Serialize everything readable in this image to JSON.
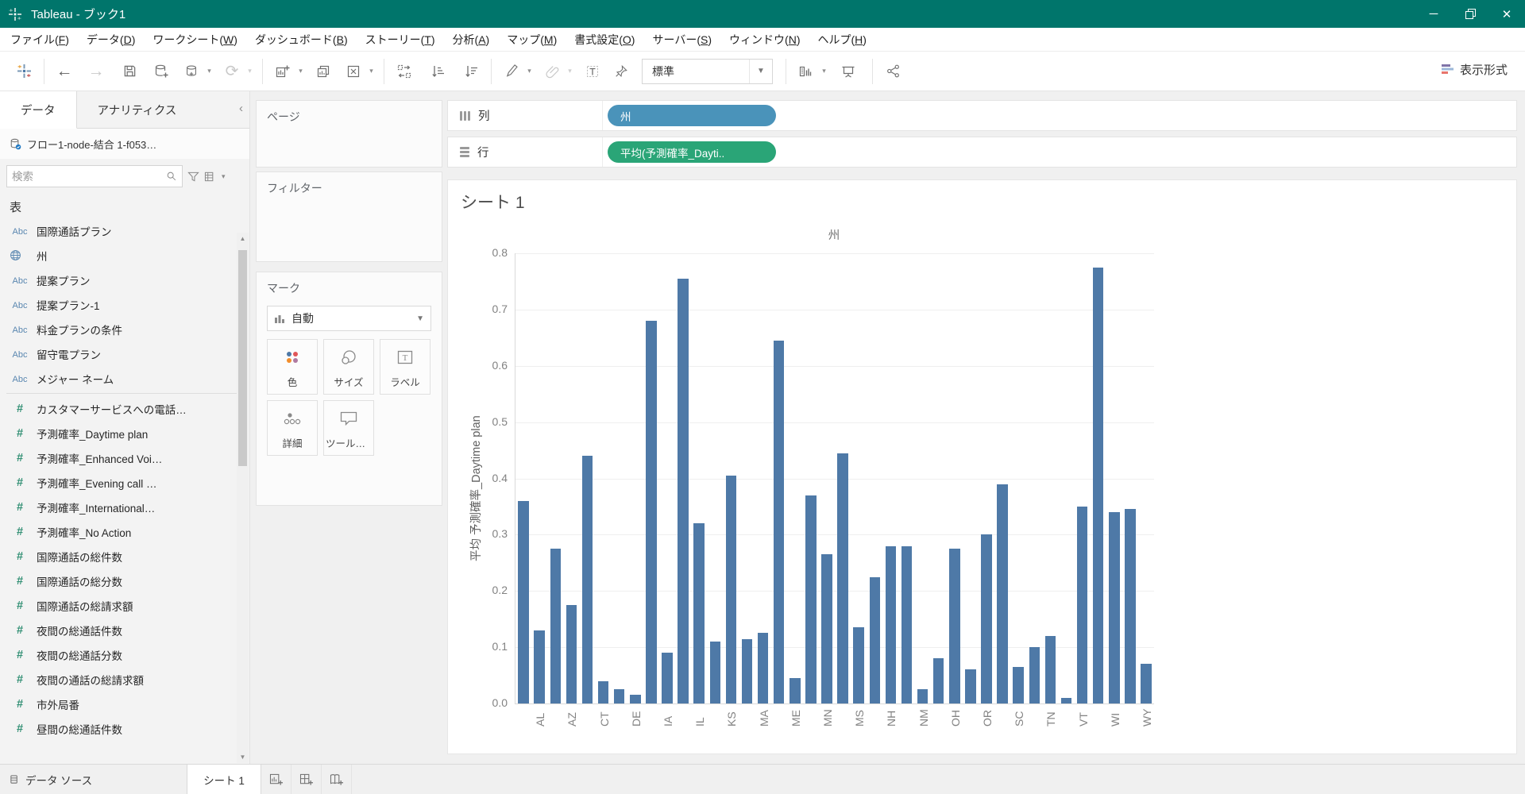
{
  "window": {
    "title": "Tableau - ブック1"
  },
  "menu": {
    "items": [
      "ファイル(F)",
      "データ(D)",
      "ワークシート(W)",
      "ダッシュボード(B)",
      "ストーリー(T)",
      "分析(A)",
      "マップ(M)",
      "書式設定(O)",
      "サーバー(S)",
      "ウィンドウ(N)",
      "ヘルプ(H)"
    ]
  },
  "toolbar": {
    "fit_label": "標準",
    "show_me_label": "表示形式"
  },
  "sidebar": {
    "tabs": [
      {
        "label": "データ",
        "active": true
      },
      {
        "label": "アナリティクス",
        "active": false
      }
    ],
    "datasource": "フロー1-node-結合 1-f053…",
    "search_placeholder": "検索",
    "tables_label": "表",
    "fields": [
      {
        "icon": "Abc",
        "label": "国際通話プラン"
      },
      {
        "icon": "globe",
        "label": "州"
      },
      {
        "icon": "Abc",
        "label": "提案プラン"
      },
      {
        "icon": "Abc",
        "label": "提案プラン-1"
      },
      {
        "icon": "Abc",
        "label": "料金プランの条件"
      },
      {
        "icon": "Abc",
        "label": "留守電プラン"
      },
      {
        "icon": "Abc",
        "label": "メジャー ネーム",
        "divider_after": true
      },
      {
        "icon": "#",
        "label": "カスタマーサービスへの電話…"
      },
      {
        "icon": "#",
        "label": "予測確率_Daytime plan"
      },
      {
        "icon": "#",
        "label": "予測確率_Enhanced Voi…"
      },
      {
        "icon": "#",
        "label": "予測確率_Evening call …"
      },
      {
        "icon": "#",
        "label": "予測確率_International…"
      },
      {
        "icon": "#",
        "label": "予測確率_No Action"
      },
      {
        "icon": "#",
        "label": "国際通話の総件数"
      },
      {
        "icon": "#",
        "label": "国際通話の総分数"
      },
      {
        "icon": "#",
        "label": "国際通話の総請求額"
      },
      {
        "icon": "#",
        "label": "夜間の総通話件数"
      },
      {
        "icon": "#",
        "label": "夜間の総通話分数"
      },
      {
        "icon": "#",
        "label": "夜間の通話の総請求額"
      },
      {
        "icon": "#",
        "label": "市外局番"
      },
      {
        "icon": "#",
        "label": "昼間の総通話件数"
      }
    ]
  },
  "cards": {
    "pages_label": "ページ",
    "filters_label": "フィルター",
    "marks_label": "マーク",
    "mark_type": "自動",
    "mark_buttons": [
      {
        "id": "color",
        "label": "色"
      },
      {
        "id": "size",
        "label": "サイズ"
      },
      {
        "id": "label",
        "label": "ラベル"
      },
      {
        "id": "detail",
        "label": "詳細"
      },
      {
        "id": "tooltip",
        "label": "ツールヒ…"
      }
    ]
  },
  "shelves": {
    "columns_label": "列",
    "rows_label": "行",
    "column_pills": [
      {
        "label": "州",
        "color": "#4a93ba"
      }
    ],
    "row_pills": [
      {
        "label": "平均(予測確率_Dayti..",
        "color": "#2aa577"
      }
    ]
  },
  "sheet": {
    "title": "シート 1"
  },
  "statusbar": {
    "datasource_tab": "データ ソース",
    "sheet_tab": "シート 1"
  },
  "colors": {
    "titlebar": "#00756b",
    "dimension_pill": "#4a93ba",
    "measure_pill": "#2aa577",
    "bar": "#4e79a7",
    "measure_icon": "#359176",
    "dimension_icon": "#5a87b0"
  },
  "chart_data": {
    "type": "bar",
    "title": "州",
    "xlabel": "州",
    "ylabel": "平均 予測確率_Daytime plan",
    "ylim": [
      0,
      0.8
    ],
    "ytick_step": 0.1,
    "yticks": [
      "0.0",
      "0.1",
      "0.2",
      "0.3",
      "0.4",
      "0.5",
      "0.6",
      "0.7",
      "0.8"
    ],
    "grid": true,
    "legend": "none",
    "bar_color": "#4e79a7",
    "categories": [
      "",
      "AL",
      "",
      "AZ",
      "",
      "CT",
      "",
      "DE",
      "",
      "IA",
      "",
      "IL",
      "",
      "KS",
      "",
      "MA",
      "",
      "ME",
      "",
      "MN",
      "",
      "MS",
      "",
      "NH",
      "",
      "NM",
      "",
      "OH",
      "",
      "OR",
      "",
      "SC",
      "",
      "TN",
      "",
      "VT",
      "",
      "WI",
      "",
      "WY"
    ],
    "values": [
      0.36,
      0.13,
      0.275,
      0.175,
      0.44,
      0.04,
      0.025,
      0.015,
      0.68,
      0.09,
      0.755,
      0.32,
      0.11,
      0.405,
      0.115,
      0.125,
      0.645,
      0.045,
      0.37,
      0.265,
      0.445,
      0.135,
      0.225,
      0.28,
      0.28,
      0.025,
      0.08,
      0.275,
      0.06,
      0.3,
      0.39,
      0.065,
      0.1,
      0.12,
      0.01,
      0.35,
      0.775,
      0.34,
      0.345,
      0.07
    ]
  }
}
